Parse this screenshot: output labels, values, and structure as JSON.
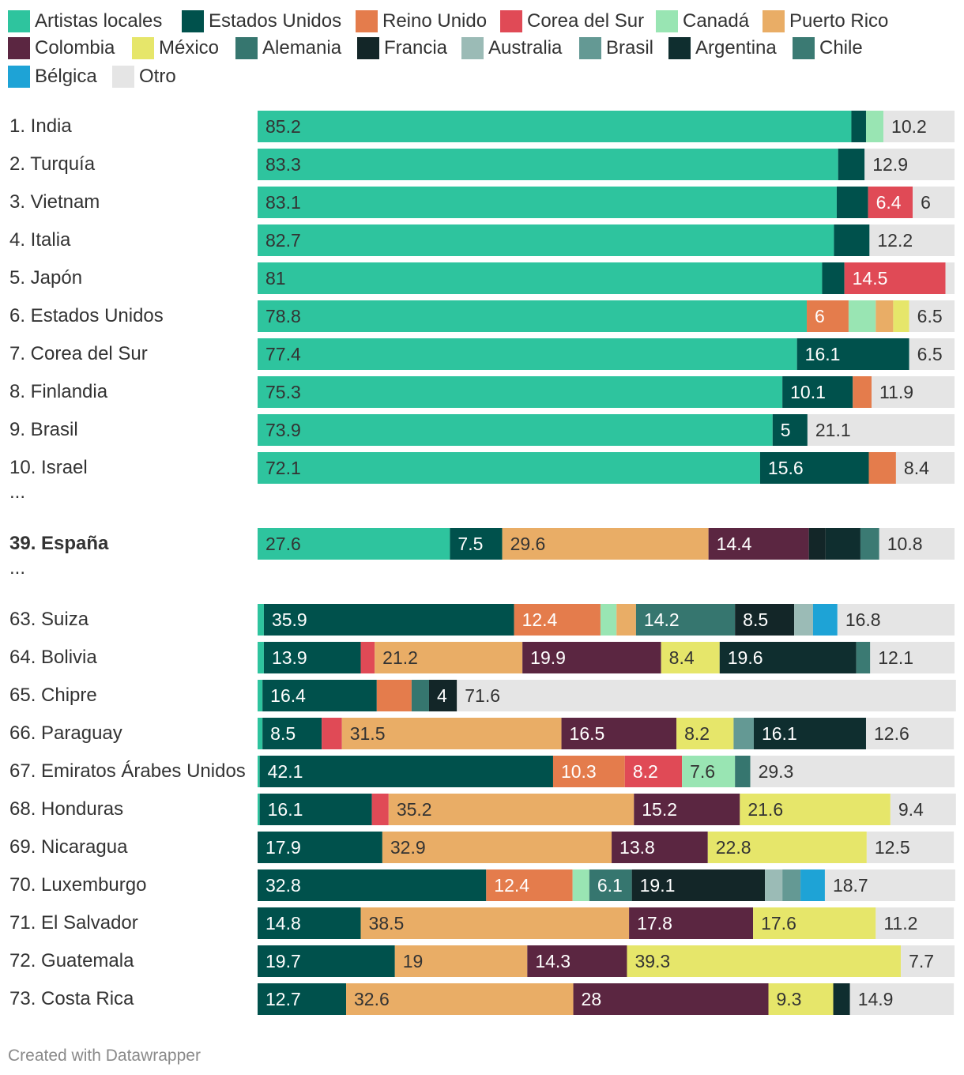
{
  "colors": {
    "Artistas locales": "#2ec49e",
    "Estados Unidos": "#00514c",
    "Reino Unido": "#e47c4c",
    "Corea del Sur": "#e04a56",
    "Canadá": "#99e5b3",
    "Puerto Rico": "#e9ad66",
    "Colombia": "#5b2641",
    "México": "#e6e66a",
    "Alemania": "#36766f",
    "Francia": "#132628",
    "Australia": "#9bbbb6",
    "Brasil": "#649994",
    "Argentina": "#0f2e2f",
    "Chile": "#3b7a73",
    "Bélgica": "#1ea3d6",
    "Otro": "#e5e5e5"
  },
  "label_colors": {
    "dark": "#333333",
    "light": "#ffffff"
  },
  "chart_data": {
    "type": "bar",
    "orientation": "horizontal",
    "stacked": true,
    "xlim": [
      0,
      100
    ],
    "legend_position": "top",
    "legend": [
      "Artistas locales",
      "Estados Unidos",
      "Reino Unido",
      "Corea del Sur",
      "Canadá",
      "Puerto Rico",
      "Colombia",
      "México",
      "Alemania",
      "Francia",
      "Australia",
      "Brasil",
      "Argentina",
      "Chile",
      "Bélgica",
      "Otro"
    ],
    "rows": [
      {
        "label": "1. India",
        "bold": false,
        "segments": [
          {
            "series": "Artistas locales",
            "value": 85.2,
            "label": "85.2"
          },
          {
            "series": "Estados Unidos",
            "value": 2.1
          },
          {
            "series": "Canadá",
            "value": 2.5
          },
          {
            "series": "Otro",
            "value": 10.2,
            "label": "10.2"
          }
        ]
      },
      {
        "label": "2. Turquía",
        "bold": false,
        "segments": [
          {
            "series": "Artistas locales",
            "value": 83.3,
            "label": "83.3"
          },
          {
            "series": "Estados Unidos",
            "value": 3.8
          },
          {
            "series": "Otro",
            "value": 12.9,
            "label": "12.9"
          }
        ]
      },
      {
        "label": "3. Vietnam",
        "bold": false,
        "segments": [
          {
            "series": "Artistas locales",
            "value": 83.1,
            "label": "83.1"
          },
          {
            "series": "Estados Unidos",
            "value": 4.5
          },
          {
            "series": "Corea del Sur",
            "value": 6.4,
            "label": "6.4"
          },
          {
            "series": "Otro",
            "value": 6,
            "label": "6"
          }
        ]
      },
      {
        "label": "4. Italia",
        "bold": false,
        "segments": [
          {
            "series": "Artistas locales",
            "value": 82.7,
            "label": "82.7"
          },
          {
            "series": "Estados Unidos",
            "value": 5.1
          },
          {
            "series": "Otro",
            "value": 12.2,
            "label": "12.2"
          }
        ]
      },
      {
        "label": "5. Japón",
        "bold": false,
        "segments": [
          {
            "series": "Artistas locales",
            "value": 81,
            "label": "81"
          },
          {
            "series": "Estados Unidos",
            "value": 3.2
          },
          {
            "series": "Corea del Sur",
            "value": 14.5,
            "label": "14.5"
          },
          {
            "series": "Otro",
            "value": 1.3
          }
        ]
      },
      {
        "label": "6. Estados Unidos",
        "bold": false,
        "segments": [
          {
            "series": "Artistas locales",
            "value": 78.8,
            "label": "78.8"
          },
          {
            "series": "Reino Unido",
            "value": 6,
            "label": "6"
          },
          {
            "series": "Canadá",
            "value": 3.9
          },
          {
            "series": "Puerto Rico",
            "value": 2.5
          },
          {
            "series": "México",
            "value": 2.3
          },
          {
            "series": "Otro",
            "value": 6.5,
            "label": "6.5"
          }
        ]
      },
      {
        "label": "7. Corea del Sur",
        "bold": false,
        "segments": [
          {
            "series": "Artistas locales",
            "value": 77.4,
            "label": "77.4"
          },
          {
            "series": "Estados Unidos",
            "value": 16.1,
            "label": "16.1"
          },
          {
            "series": "Otro",
            "value": 6.5,
            "label": "6.5"
          }
        ]
      },
      {
        "label": "8. Finlandia",
        "bold": false,
        "segments": [
          {
            "series": "Artistas locales",
            "value": 75.3,
            "label": "75.3"
          },
          {
            "series": "Estados Unidos",
            "value": 10.1,
            "label": "10.1"
          },
          {
            "series": "Reino Unido",
            "value": 2.7
          },
          {
            "series": "Otro",
            "value": 11.9,
            "label": "11.9"
          }
        ]
      },
      {
        "label": "9. Brasil",
        "bold": false,
        "segments": [
          {
            "series": "Artistas locales",
            "value": 73.9,
            "label": "73.9"
          },
          {
            "series": "Estados Unidos",
            "value": 5,
            "label": "5"
          },
          {
            "series": "Otro",
            "value": 21.1,
            "label": "21.1"
          }
        ]
      },
      {
        "label": "10. Israel",
        "bold": false,
        "segments": [
          {
            "series": "Artistas locales",
            "value": 72.1,
            "label": "72.1"
          },
          {
            "series": "Estados Unidos",
            "value": 15.6,
            "label": "15.6"
          },
          {
            "series": "Reino Unido",
            "value": 3.9
          },
          {
            "series": "Otro",
            "value": 8.4,
            "label": "8.4"
          }
        ]
      },
      {
        "label": "...",
        "spacer": true
      },
      {
        "label": "39. España",
        "bold": true,
        "segments": [
          {
            "series": "Artistas locales",
            "value": 27.6,
            "label": "27.6"
          },
          {
            "series": "Estados Unidos",
            "value": 7.5,
            "label": "7.5"
          },
          {
            "series": "Puerto Rico",
            "value": 29.6,
            "label": "29.6"
          },
          {
            "series": "Colombia",
            "value": 14.4,
            "label": "14.4"
          },
          {
            "series": "Francia",
            "value": 2.4
          },
          {
            "series": "Argentina",
            "value": 5
          },
          {
            "series": "Chile",
            "value": 2.7
          },
          {
            "series": "Otro",
            "value": 10.8,
            "label": "10.8"
          }
        ]
      },
      {
        "label": "...",
        "spacer": true
      },
      {
        "label": "63. Suiza",
        "bold": false,
        "segments": [
          {
            "series": "Artistas locales",
            "value": 0.9
          },
          {
            "series": "Estados Unidos",
            "value": 35.9,
            "label": "35.9"
          },
          {
            "series": "Reino Unido",
            "value": 12.4,
            "label": "12.4"
          },
          {
            "series": "Canadá",
            "value": 2.3
          },
          {
            "series": "Puerto Rico",
            "value": 2.8
          },
          {
            "series": "Alemania",
            "value": 14.2,
            "label": "14.2"
          },
          {
            "series": "Francia",
            "value": 8.5,
            "label": "8.5"
          },
          {
            "series": "Australia",
            "value": 2.7
          },
          {
            "series": "Bélgica",
            "value": 3.5
          },
          {
            "series": "Otro",
            "value": 16.8,
            "label": "16.8"
          }
        ]
      },
      {
        "label": "64. Bolivia",
        "bold": false,
        "segments": [
          {
            "series": "Artistas locales",
            "value": 0.9
          },
          {
            "series": "Estados Unidos",
            "value": 13.9,
            "label": "13.9"
          },
          {
            "series": "Corea del Sur",
            "value": 2
          },
          {
            "series": "Puerto Rico",
            "value": 21.2,
            "label": "21.2"
          },
          {
            "series": "Colombia",
            "value": 19.9,
            "label": "19.9"
          },
          {
            "series": "México",
            "value": 8.4,
            "label": "8.4"
          },
          {
            "series": "Argentina",
            "value": 19.6,
            "label": "19.6"
          },
          {
            "series": "Chile",
            "value": 2
          },
          {
            "series": "Otro",
            "value": 12.1,
            "label": "12.1"
          }
        ]
      },
      {
        "label": "65. Chipre",
        "bold": false,
        "segments": [
          {
            "series": "Artistas locales",
            "value": 0.7
          },
          {
            "series": "Estados Unidos",
            "value": 16.4,
            "label": "16.4"
          },
          {
            "series": "Reino Unido",
            "value": 5
          },
          {
            "series": "Alemania",
            "value": 2.5
          },
          {
            "series": "Francia",
            "value": 4,
            "label": "4"
          },
          {
            "series": "Otro",
            "value": 71.6,
            "label": "71.6"
          }
        ]
      },
      {
        "label": "66. Paraguay",
        "bold": false,
        "segments": [
          {
            "series": "Artistas locales",
            "value": 0.7
          },
          {
            "series": "Estados Unidos",
            "value": 8.5,
            "label": "8.5"
          },
          {
            "series": "Corea del Sur",
            "value": 2.9
          },
          {
            "series": "Puerto Rico",
            "value": 31.5,
            "label": "31.5"
          },
          {
            "series": "Colombia",
            "value": 16.5,
            "label": "16.5"
          },
          {
            "series": "México",
            "value": 8.2,
            "label": "8.2"
          },
          {
            "series": "Brasil",
            "value": 2.9
          },
          {
            "series": "Argentina",
            "value": 16.1,
            "label": "16.1"
          },
          {
            "series": "Otro",
            "value": 12.6,
            "label": "12.6"
          }
        ]
      },
      {
        "label": "67. Emiratos Árabes Unidos",
        "bold": false,
        "segments": [
          {
            "series": "Artistas locales",
            "value": 0.3
          },
          {
            "series": "Estados Unidos",
            "value": 42.1,
            "label": "42.1"
          },
          {
            "series": "Reino Unido",
            "value": 10.3,
            "label": "10.3"
          },
          {
            "series": "Corea del Sur",
            "value": 8.2,
            "label": "8.2"
          },
          {
            "series": "Canadá",
            "value": 7.6,
            "label": "7.6"
          },
          {
            "series": "Alemania",
            "value": 2.2
          },
          {
            "series": "Otro",
            "value": 29.3,
            "label": "29.3"
          }
        ]
      },
      {
        "label": "68. Honduras",
        "bold": false,
        "segments": [
          {
            "series": "Artistas locales",
            "value": 0.3
          },
          {
            "series": "Estados Unidos",
            "value": 16.1,
            "label": "16.1"
          },
          {
            "series": "Corea del Sur",
            "value": 2.4
          },
          {
            "series": "Puerto Rico",
            "value": 35.2,
            "label": "35.2"
          },
          {
            "series": "Colombia",
            "value": 15.2,
            "label": "15.2"
          },
          {
            "series": "México",
            "value": 21.6,
            "label": "21.6"
          },
          {
            "series": "Otro",
            "value": 9.4,
            "label": "9.4"
          }
        ]
      },
      {
        "label": "69. Nicaragua",
        "bold": false,
        "segments": [
          {
            "series": "Estados Unidos",
            "value": 17.9,
            "label": "17.9"
          },
          {
            "series": "Puerto Rico",
            "value": 32.9,
            "label": "32.9"
          },
          {
            "series": "Colombia",
            "value": 13.8,
            "label": "13.8"
          },
          {
            "series": "México",
            "value": 22.8,
            "label": "22.8"
          },
          {
            "series": "Otro",
            "value": 12.5,
            "label": "12.5"
          }
        ]
      },
      {
        "label": "70. Luxemburgo",
        "bold": false,
        "segments": [
          {
            "series": "Estados Unidos",
            "value": 32.8,
            "label": "32.8"
          },
          {
            "series": "Reino Unido",
            "value": 12.4,
            "label": "12.4"
          },
          {
            "series": "Canadá",
            "value": 2.4
          },
          {
            "series": "Alemania",
            "value": 6.1,
            "label": "6.1"
          },
          {
            "series": "Francia",
            "value": 19.1,
            "label": "19.1"
          },
          {
            "series": "Australia",
            "value": 2.5
          },
          {
            "series": "Brasil",
            "value": 2.6
          },
          {
            "series": "Bélgica",
            "value": 3.5
          },
          {
            "series": "Otro",
            "value": 18.7,
            "label": "18.7"
          }
        ]
      },
      {
        "label": "71. El Salvador",
        "bold": false,
        "segments": [
          {
            "series": "Estados Unidos",
            "value": 14.8,
            "label": "14.8"
          },
          {
            "series": "Puerto Rico",
            "value": 38.5,
            "label": "38.5"
          },
          {
            "series": "Colombia",
            "value": 17.8,
            "label": "17.8"
          },
          {
            "series": "México",
            "value": 17.6,
            "label": "17.6"
          },
          {
            "series": "Otro",
            "value": 11.2,
            "label": "11.2"
          }
        ]
      },
      {
        "label": "72. Guatemala",
        "bold": false,
        "segments": [
          {
            "series": "Estados Unidos",
            "value": 19.7,
            "label": "19.7"
          },
          {
            "series": "Puerto Rico",
            "value": 19,
            "label": "19"
          },
          {
            "series": "Colombia",
            "value": 14.3,
            "label": "14.3"
          },
          {
            "series": "México",
            "value": 39.3,
            "label": "39.3"
          },
          {
            "series": "Otro",
            "value": 7.7,
            "label": "7.7"
          }
        ]
      },
      {
        "label": "73. Costa Rica",
        "bold": false,
        "segments": [
          {
            "series": "Estados Unidos",
            "value": 12.7,
            "label": "12.7"
          },
          {
            "series": "Puerto Rico",
            "value": 32.6,
            "label": "32.6"
          },
          {
            "series": "Colombia",
            "value": 28,
            "label": "28"
          },
          {
            "series": "México",
            "value": 9.3,
            "label": "9.3"
          },
          {
            "series": "Argentina",
            "value": 2.4
          },
          {
            "series": "Otro",
            "value": 14.9,
            "label": "14.9"
          }
        ]
      }
    ]
  },
  "footer": {
    "credit": "Created with Datawrapper"
  }
}
